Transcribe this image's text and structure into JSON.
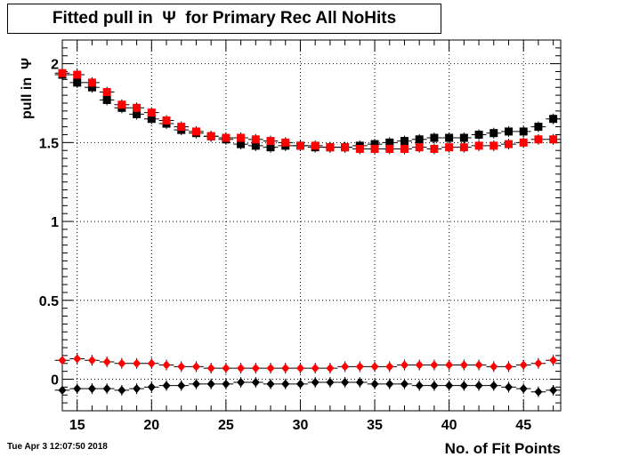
{
  "title": "Fitted pull in  Ψ  for Primary Rec All NoHits",
  "timestamp": "Tue Apr  3 12:07:50 2018",
  "chart_data": {
    "type": "scatter",
    "title": "Fitted pull in  Ψ  for Primary Rec All NoHits",
    "xlabel": "No. of Fit Points",
    "ylabel": "pull in  Ψ",
    "xlim": [
      14,
      47.5
    ],
    "ylim": [
      -0.2,
      2.15
    ],
    "grid": true,
    "xticks": [
      15,
      20,
      25,
      30,
      35,
      40,
      45
    ],
    "yticks": [
      0,
      0.5,
      1,
      1.5,
      2
    ],
    "ytick_labels": [
      "0",
      "0.5",
      "1",
      "1.5",
      "2"
    ],
    "x": [
      14,
      15,
      16,
      17,
      18,
      19,
      20,
      21,
      22,
      23,
      24,
      25,
      26,
      27,
      28,
      29,
      30,
      31,
      32,
      33,
      34,
      35,
      36,
      37,
      38,
      39,
      40,
      41,
      42,
      43,
      44,
      45,
      46,
      47
    ],
    "series": [
      {
        "marker": "square",
        "color": "#000000",
        "values": [
          1.93,
          1.88,
          1.85,
          1.77,
          1.72,
          1.68,
          1.65,
          1.62,
          1.58,
          1.56,
          1.54,
          1.52,
          1.49,
          1.48,
          1.47,
          1.48,
          1.48,
          1.47,
          1.47,
          1.47,
          1.48,
          1.49,
          1.5,
          1.51,
          1.52,
          1.53,
          1.53,
          1.53,
          1.55,
          1.56,
          1.57,
          1.57,
          1.6,
          1.65
        ]
      },
      {
        "marker": "square",
        "color": "#ff0000",
        "values": [
          1.94,
          1.93,
          1.88,
          1.82,
          1.74,
          1.72,
          1.69,
          1.64,
          1.6,
          1.57,
          1.54,
          1.53,
          1.53,
          1.52,
          1.51,
          1.5,
          1.48,
          1.48,
          1.47,
          1.47,
          1.46,
          1.46,
          1.46,
          1.46,
          1.47,
          1.46,
          1.47,
          1.47,
          1.48,
          1.48,
          1.49,
          1.5,
          1.52,
          1.52
        ]
      },
      {
        "marker": "diamond",
        "color": "#ff0000",
        "values": [
          0.12,
          0.13,
          0.12,
          0.11,
          0.1,
          0.1,
          0.1,
          0.09,
          0.08,
          0.08,
          0.07,
          0.07,
          0.07,
          0.07,
          0.07,
          0.07,
          0.07,
          0.07,
          0.07,
          0.08,
          0.08,
          0.08,
          0.08,
          0.09,
          0.09,
          0.09,
          0.09,
          0.09,
          0.09,
          0.08,
          0.08,
          0.09,
          0.1,
          0.12
        ]
      },
      {
        "marker": "diamond",
        "color": "#000000",
        "values": [
          -0.07,
          -0.06,
          -0.06,
          -0.06,
          -0.07,
          -0.06,
          -0.05,
          -0.04,
          -0.04,
          -0.03,
          -0.03,
          -0.03,
          -0.02,
          -0.02,
          -0.03,
          -0.03,
          -0.03,
          -0.02,
          -0.02,
          -0.02,
          -0.02,
          -0.03,
          -0.03,
          -0.03,
          -0.04,
          -0.04,
          -0.04,
          -0.04,
          -0.04,
          -0.04,
          -0.05,
          -0.06,
          -0.08,
          -0.07
        ]
      }
    ]
  }
}
